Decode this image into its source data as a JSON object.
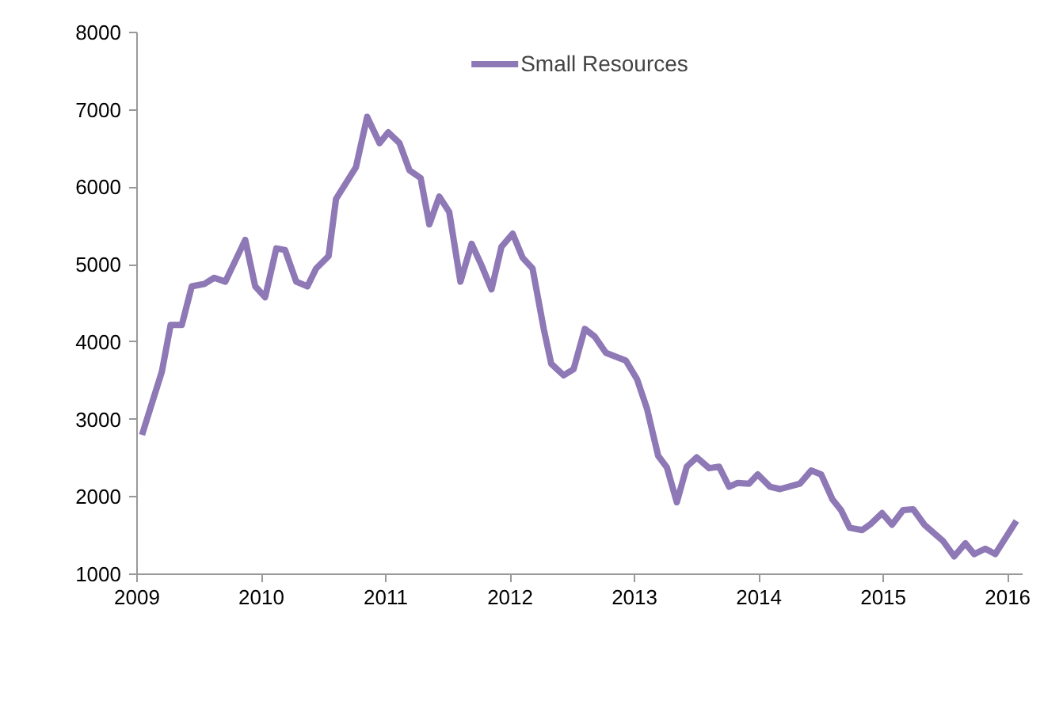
{
  "chart_data": {
    "type": "line",
    "x": [
      2009.04,
      2009.2,
      2009.27,
      2009.36,
      2009.44,
      2009.54,
      2009.62,
      2009.71,
      2009.87,
      2009.95,
      2010.03,
      2010.12,
      2010.19,
      2010.28,
      2010.37,
      2010.44,
      2010.54,
      2010.6,
      2010.76,
      2010.85,
      2010.95,
      2011.02,
      2011.11,
      2011.19,
      2011.28,
      2011.35,
      2011.43,
      2011.51,
      2011.6,
      2011.69,
      2011.77,
      2011.85,
      2011.93,
      2012.02,
      2012.1,
      2012.18,
      2012.27,
      2012.33,
      2012.43,
      2012.51,
      2012.6,
      2012.68,
      2012.77,
      2012.93,
      2013.02,
      2013.1,
      2013.19,
      2013.26,
      2013.34,
      2013.42,
      2013.5,
      2013.6,
      2013.68,
      2013.76,
      2013.83,
      2013.92,
      2013.99,
      2014.09,
      2014.17,
      2014.33,
      2014.42,
      2014.5,
      2014.59,
      2014.66,
      2014.73,
      2014.83,
      2014.9,
      2014.99,
      2015.07,
      2015.16,
      2015.24,
      2015.33,
      2015.48,
      2015.57,
      2015.66,
      2015.73,
      2015.82,
      2015.9,
      2016.07
    ],
    "series": [
      {
        "name": "Small Resources",
        "color": "#8e78b6",
        "values": [
          2800,
          3620,
          4220,
          4220,
          4720,
          4750,
          4830,
          4780,
          5320,
          4720,
          4580,
          5210,
          5190,
          4780,
          4720,
          4950,
          5110,
          5850,
          6260,
          6910,
          6570,
          6710,
          6570,
          6220,
          6120,
          5520,
          5880,
          5680,
          4780,
          5270,
          4990,
          4680,
          5230,
          5400,
          5090,
          4950,
          4170,
          3720,
          3570,
          3650,
          4170,
          4070,
          3860,
          3760,
          3520,
          3140,
          2530,
          2380,
          1930,
          2390,
          2510,
          2370,
          2390,
          2130,
          2180,
          2170,
          2290,
          2130,
          2100,
          2170,
          2340,
          2290,
          1970,
          1830,
          1600,
          1570,
          1650,
          1790,
          1640,
          1830,
          1840,
          1640,
          1430,
          1230,
          1400,
          1260,
          1330,
          1260,
          1690
        ]
      }
    ],
    "xlim": [
      2009,
      2016.12
    ],
    "xticks": [
      2009,
      2010,
      2011,
      2012,
      2013,
      2014,
      2015,
      2016
    ],
    "ylim": [
      1000,
      8000
    ],
    "yticks": [
      1000,
      2000,
      3000,
      4000,
      5000,
      6000,
      7000,
      8000
    ],
    "grid": false,
    "legend": "top",
    "marker": "none",
    "line_style": "solid"
  }
}
